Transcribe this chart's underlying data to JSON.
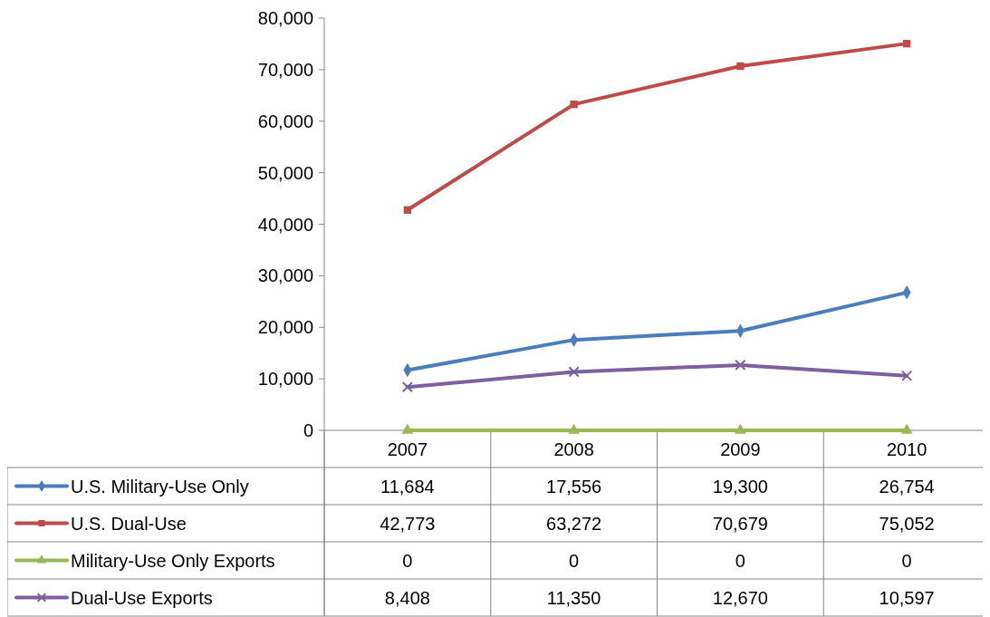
{
  "chart_data": {
    "type": "line",
    "categories": [
      "2007",
      "2008",
      "2009",
      "2010"
    ],
    "series": [
      {
        "name": "U.S. Military-Use Only",
        "color": "#4a7ebb",
        "marker": "diamond",
        "values": [
          11684,
          17556,
          19300,
          26754
        ],
        "value_labels": [
          "11,684",
          "17,556",
          "19,300",
          "26,754"
        ]
      },
      {
        "name": "U.S. Dual-Use",
        "color": "#be4b48",
        "marker": "square",
        "values": [
          42773,
          63272,
          70679,
          75052
        ],
        "value_labels": [
          "42,773",
          "63,272",
          "70,679",
          "75,052"
        ]
      },
      {
        "name": "Military-Use Only Exports",
        "color": "#98b954",
        "marker": "triangle",
        "values": [
          0,
          0,
          0,
          0
        ],
        "value_labels": [
          "0",
          "0",
          "0",
          "0"
        ]
      },
      {
        "name": "Dual-Use Exports",
        "color": "#7d60a0",
        "marker": "cross",
        "values": [
          8408,
          11350,
          12670,
          10597
        ],
        "value_labels": [
          "8,408",
          "11,350",
          "12,670",
          "10,597"
        ]
      }
    ],
    "ylim": [
      0,
      80000
    ],
    "yticks": [
      {
        "value": 0,
        "label": "0"
      },
      {
        "value": 10000,
        "label": "10,000"
      },
      {
        "value": 20000,
        "label": "20,000"
      },
      {
        "value": 30000,
        "label": "30,000"
      },
      {
        "value": 40000,
        "label": "40,000"
      },
      {
        "value": 50000,
        "label": "50,000"
      },
      {
        "value": 60000,
        "label": "60,000"
      },
      {
        "value": 70000,
        "label": "70,000"
      },
      {
        "value": 80000,
        "label": "80,000"
      }
    ],
    "grid": false,
    "legend": "bottom",
    "line_style": "solid"
  }
}
